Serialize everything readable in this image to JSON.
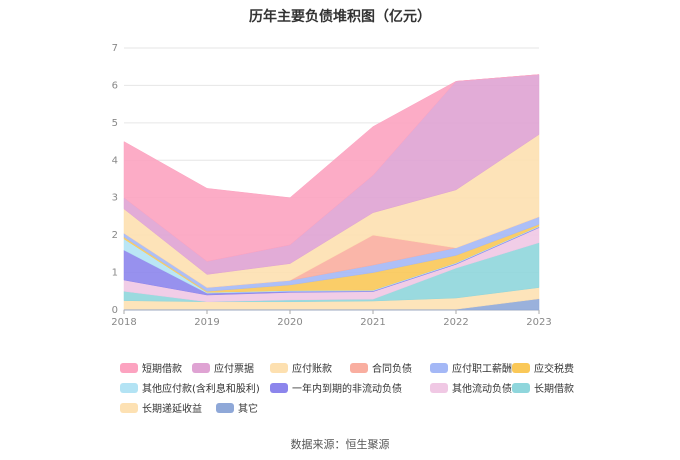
{
  "chart_data": {
    "type": "area",
    "stacked": true,
    "title": "历年主要负债堆积图（亿元）",
    "x": [
      "2018",
      "2019",
      "2020",
      "2021",
      "2022",
      "2023"
    ],
    "ylim": [
      0,
      7
    ],
    "yticks": [
      0,
      1,
      2,
      3,
      4,
      5,
      6,
      7
    ],
    "grid": true,
    "legend_position": "bottom",
    "series": [
      {
        "name": "其它",
        "color": "#8fa8d8",
        "values": [
          0.02,
          0.02,
          0.02,
          0.02,
          0.02,
          0.3
        ]
      },
      {
        "name": "长期递延收益",
        "color": "#fde1b3",
        "values": [
          0.23,
          0.2,
          0.2,
          0.22,
          0.3,
          0.3
        ]
      },
      {
        "name": "长期借款",
        "color": "#8fd6dc",
        "values": [
          0.25,
          0.0,
          0.05,
          0.05,
          0.8,
          1.2
        ]
      },
      {
        "name": "其他流动负债",
        "color": "#f0c8e4",
        "values": [
          0.3,
          0.18,
          0.2,
          0.2,
          0.1,
          0.4
        ]
      },
      {
        "name": "一年内到期的非流动负债",
        "color": "#8c85ec",
        "values": [
          0.8,
          0.05,
          0.03,
          0.02,
          0.02,
          0.02
        ]
      },
      {
        "name": "其他应付款(含利息和股利)",
        "color": "#b3e3f4",
        "values": [
          0.3,
          0.02,
          0.02,
          0.02,
          0.02,
          0.02
        ]
      },
      {
        "name": "应交税费",
        "color": "#fac858",
        "values": [
          0.05,
          0.03,
          0.15,
          0.47,
          0.2,
          0.05
        ]
      },
      {
        "name": "应付职工薪酬",
        "color": "#a4b8f6",
        "values": [
          0.1,
          0.1,
          0.12,
          0.2,
          0.2,
          0.2
        ]
      },
      {
        "name": "合同负债",
        "color": "#f9aea0",
        "values": [
          0.0,
          0.0,
          0.0,
          0.8,
          0.0,
          0.0
        ]
      },
      {
        "name": "应付账款",
        "color": "#fde0b0",
        "values": [
          0.65,
          0.35,
          0.45,
          0.6,
          1.55,
          2.2
        ]
      },
      {
        "name": "应付票据",
        "color": "#dfa3d3",
        "values": [
          0.3,
          0.35,
          0.5,
          1.0,
          2.9,
          1.6
        ]
      },
      {
        "name": "短期借款",
        "color": "#fca3c0",
        "values": [
          1.5,
          1.95,
          1.26,
          1.3,
          0.0,
          0.0
        ]
      }
    ]
  },
  "legend_order": [
    "短期借款",
    "应付票据",
    "应付账款",
    "合同负债",
    "应付职工薪酬",
    "应交税费",
    "其他应付款(含利息和股利)",
    "一年内到期的非流动负债",
    "其他流动负债",
    "长期借款",
    "长期递延收益",
    "其它"
  ],
  "source_text": "数据来源：恒生聚源"
}
